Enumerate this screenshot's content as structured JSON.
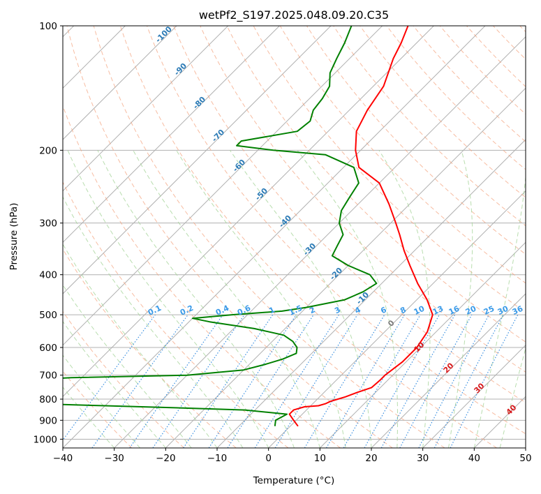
{
  "chart_data": {
    "type": "line",
    "title": "wetPf2_S197.2025.048.09.20.C35",
    "xlabel": "Temperature (°C)",
    "ylabel": "Pressure (hPa)",
    "xlim": [
      -40,
      50
    ],
    "ylim": [
      1050,
      100
    ],
    "y_scale": "log",
    "x_ticks": [
      -40,
      -30,
      -20,
      -10,
      0,
      10,
      20,
      30,
      40,
      50
    ],
    "y_ticks": [
      100,
      200,
      300,
      400,
      500,
      600,
      700,
      800,
      900,
      1000
    ],
    "grid": true,
    "skew": "skew-T log-p",
    "series": [
      {
        "color": "#ff0000",
        "pressure": [
          930,
          900,
          870,
          850,
          835,
          830,
          820,
          810,
          800,
          790,
          770,
          750,
          720,
          700,
          650,
          600,
          550,
          500,
          460,
          420,
          380,
          350,
          320,
          300,
          270,
          240,
          220,
          200,
          180,
          160,
          140,
          120,
          110,
          100
        ],
        "temperature": [
          1.5,
          -0.5,
          -2.5,
          -2.5,
          -1,
          1.5,
          2.5,
          3,
          4,
          5,
          6.5,
          8.3,
          8.5,
          8.5,
          9.3,
          9.3,
          8.3,
          6,
          2,
          -3,
          -8,
          -12,
          -16,
          -19,
          -24,
          -30,
          -37,
          -41,
          -44.5,
          -46.5,
          -48,
          -51.5,
          -53,
          -55
        ]
      },
      {
        "color": "#008000",
        "pressure": [
          930,
          900,
          870,
          850,
          840,
          830,
          820,
          810,
          800,
          790,
          780,
          770,
          750,
          730,
          710,
          700,
          680,
          660,
          640,
          620,
          600,
          580,
          560,
          540,
          520,
          510,
          500,
          490,
          480,
          460,
          440,
          420,
          400,
          380,
          360,
          340,
          320,
          300,
          280,
          260,
          240,
          220,
          205,
          200,
          195,
          190,
          180,
          170,
          160,
          150,
          140,
          130,
          120,
          110,
          100
        ],
        "temperature": [
          -3,
          -4,
          -3,
          -12,
          -25,
          -40,
          -55,
          -65,
          -72,
          -85,
          -95,
          -110,
          -100,
          -70,
          -52,
          -30,
          -20,
          -17,
          -14.5,
          -13,
          -14,
          -16,
          -19,
          -26,
          -36,
          -40,
          -33,
          -24,
          -20,
          -14,
          -12,
          -11,
          -14,
          -20,
          -25,
          -26,
          -27,
          -30,
          -32,
          -33,
          -34,
          -38,
          -46,
          -57,
          -65,
          -65,
          -56,
          -55.5,
          -57,
          -57.5,
          -58.5,
          -61,
          -62.5,
          -64,
          -66
        ]
      }
    ],
    "dry_adiabat_labels": [
      "-100",
      "-90",
      "-80",
      "-70",
      "-60",
      "-50",
      "-40",
      "-30",
      "-20",
      "-10"
    ],
    "mixing_ratio_labels": [
      "0.1",
      "0.2",
      "0.4",
      "0.6",
      "1",
      "1.5",
      "2",
      "3",
      "4",
      "6",
      "8",
      "10",
      "13",
      "16",
      "20",
      "25",
      "30",
      "36"
    ],
    "moist_adiabat_labels": [
      "0",
      "10",
      "20",
      "30",
      "40"
    ]
  }
}
